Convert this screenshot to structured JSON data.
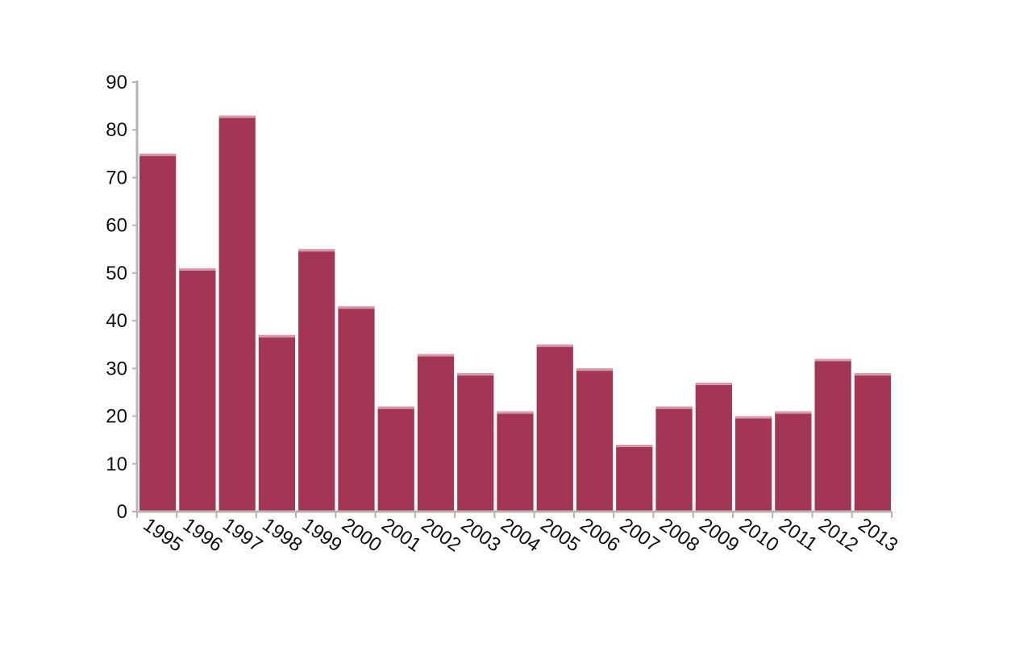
{
  "chart_data": {
    "type": "bar",
    "categories": [
      "1995",
      "1996",
      "1997",
      "1998",
      "1999",
      "2000",
      "2001",
      "2002",
      "2003",
      "2004",
      "2005",
      "2006",
      "2007",
      "2008",
      "2009",
      "2010",
      "2011",
      "2012",
      "2013"
    ],
    "values": [
      75,
      51,
      83,
      37,
      55,
      43,
      22,
      33,
      29,
      21,
      35,
      30,
      14,
      22,
      27,
      20,
      21,
      32,
      29
    ],
    "ylim": [
      0,
      90
    ],
    "yticks": [
      0,
      10,
      20,
      30,
      40,
      50,
      60,
      70,
      80,
      90
    ],
    "title": "",
    "xlabel": "",
    "ylabel": "",
    "grid": false,
    "legend": "none",
    "colors": {
      "bar": "#a33655",
      "bar_top": "#d89aa8",
      "axis": "#b9b3ae"
    }
  }
}
